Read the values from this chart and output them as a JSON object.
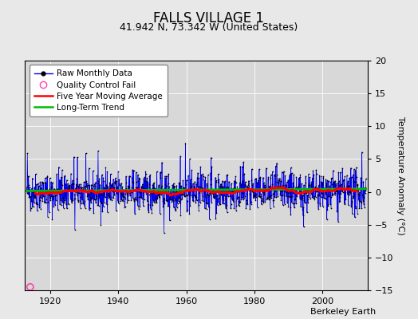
{
  "title": "FALLS VILLAGE 1",
  "subtitle": "41.942 N, 73.342 W (United States)",
  "ylabel": "Temperature Anomaly (°C)",
  "attribution": "Berkeley Earth",
  "xlim": [
    1912.5,
    2013.5
  ],
  "ylim": [
    -15,
    20
  ],
  "yticks": [
    -15,
    -10,
    -5,
    0,
    5,
    10,
    15,
    20
  ],
  "xticks": [
    1920,
    1940,
    1960,
    1980,
    2000
  ],
  "fig_facecolor": "#e8e8e8",
  "plot_facecolor": "#d8d8d8",
  "raw_line_color": "#0000ee",
  "raw_dot_color": "#000000",
  "qc_fail_color": "#ff44aa",
  "moving_avg_color": "#ff0000",
  "trend_color": "#00bb00",
  "grid_color": "#ffffff",
  "seed": 42,
  "start_year": 1913,
  "end_year": 2012,
  "qc_fail_x": 1914.0,
  "qc_fail_y": -14.5,
  "legend_labels": [
    "Raw Monthly Data",
    "Quality Control Fail",
    "Five Year Moving Average",
    "Long-Term Trend"
  ],
  "title_fontsize": 12,
  "subtitle_fontsize": 9,
  "ylabel_fontsize": 8,
  "tick_fontsize": 8,
  "legend_fontsize": 7.5,
  "attribution_fontsize": 8
}
